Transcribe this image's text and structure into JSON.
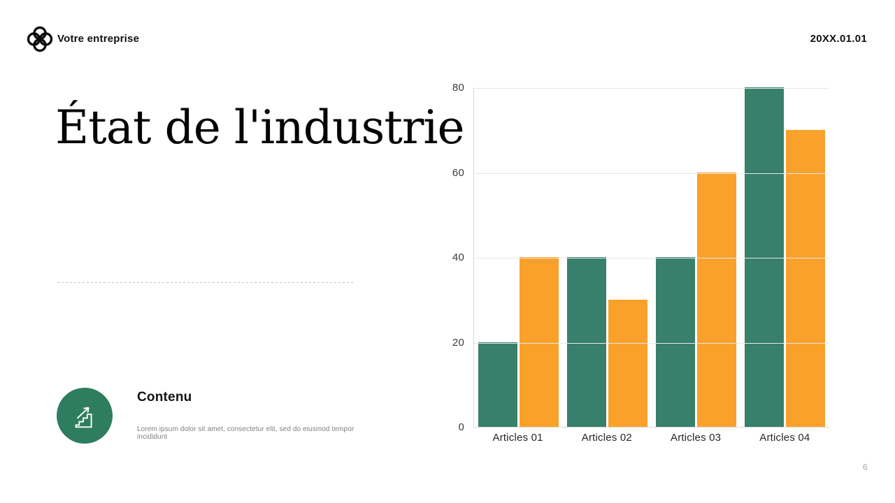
{
  "header": {
    "company": "Votre entreprise",
    "date": "20XX.01.01"
  },
  "title": "État de l'industrie",
  "content": {
    "heading": "Contenu",
    "body": "Lorem ipsum dolor sit amet, consectetur elit, sed do eiusmod tempor incididunt",
    "icon": "growth-stairs-icon",
    "icon_circle_color": "#2E7D5F"
  },
  "page_number": "6",
  "colors": {
    "bar_green": "#38806B",
    "bar_orange": "#F9A12B",
    "gridline": "#E7E7E7",
    "axis_line": "#D9D9D9",
    "axis_text": "#3B3B3B"
  },
  "chart_data": {
    "type": "bar",
    "title": "",
    "xlabel": "",
    "ylabel": "",
    "categories": [
      "Articles 01",
      "Articles 02",
      "Articles 03",
      "Articles 04"
    ],
    "series": [
      {
        "name": "series-green",
        "color": "#38806B",
        "values": [
          20,
          40,
          40,
          80
        ]
      },
      {
        "name": "series-orange",
        "color": "#F9A12B",
        "values": [
          40,
          30,
          60,
          70
        ]
      }
    ],
    "ylim": [
      0,
      80
    ],
    "yticks": [
      0,
      20,
      40,
      60,
      80
    ],
    "grid": true,
    "legend_position": "none"
  }
}
